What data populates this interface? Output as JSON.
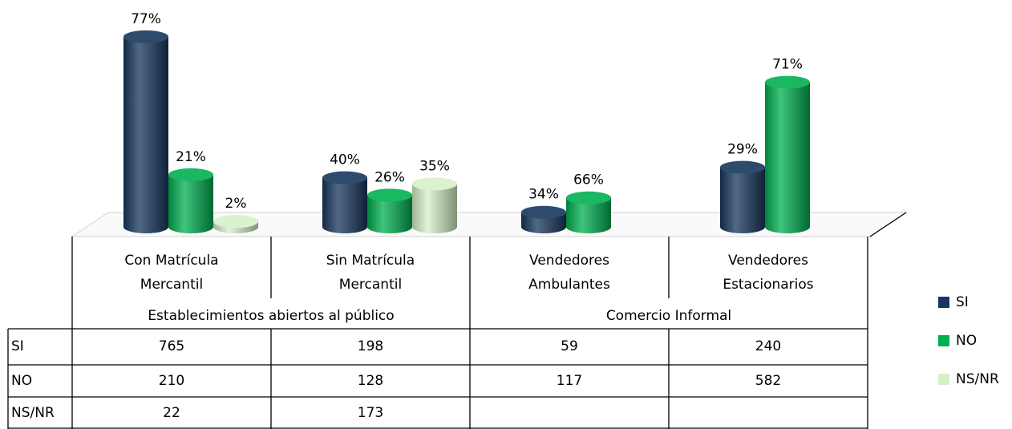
{
  "chart_data": {
    "type": "bar",
    "categories": [
      [
        "Con Matrícula",
        "Mercantil"
      ],
      [
        "Sin Matrícula",
        "Mercantil"
      ],
      [
        "Vendedores",
        "Ambulantes"
      ],
      [
        "Vendedores",
        "Estacionarios"
      ]
    ],
    "groups": [
      "Establecimientos abiertos al público",
      "Comercio Informal"
    ],
    "series": [
      {
        "name": "SI",
        "color": "#17375e",
        "values": [
          765,
          198,
          59,
          240
        ],
        "labels": [
          "77%",
          "40%",
          "34%",
          "29%"
        ]
      },
      {
        "name": "NO",
        "color": "#00b050",
        "values": [
          210,
          128,
          117,
          582
        ],
        "labels": [
          "21%",
          "26%",
          "66%",
          "71%"
        ]
      },
      {
        "name": "NS/NR",
        "color": "#d7f0c8",
        "values": [
          22,
          173,
          null,
          null
        ],
        "labels": [
          "2%",
          "35%",
          null,
          null
        ]
      }
    ]
  }
}
